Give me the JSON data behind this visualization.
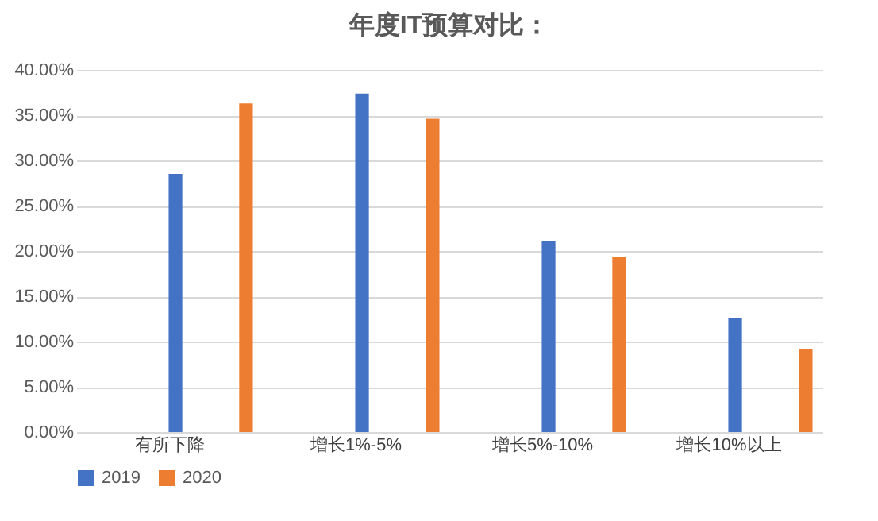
{
  "chart_data": {
    "type": "bar",
    "title": "年度IT预算对比：",
    "categories": [
      "有所下降",
      "增长1%-5%",
      "增长5%-10%",
      "增长10%以上"
    ],
    "series": [
      {
        "name": "2019",
        "color": "#4472c4",
        "values": [
          28.5,
          37.4,
          21.1,
          12.6
        ]
      },
      {
        "name": "2020",
        "color": "#ed7d31",
        "values": [
          36.3,
          34.6,
          19.3,
          9.2
        ]
      }
    ],
    "ylim": [
      0,
      40
    ],
    "yticks": [
      {
        "value": 0,
        "label": "0.00%"
      },
      {
        "value": 5,
        "label": "5.00%"
      },
      {
        "value": 10,
        "label": "10.00%"
      },
      {
        "value": 15,
        "label": "15.00%"
      },
      {
        "value": 20,
        "label": "20.00%"
      },
      {
        "value": 25,
        "label": "25.00%"
      },
      {
        "value": 30,
        "label": "30.00%"
      },
      {
        "value": 35,
        "label": "35.00%"
      },
      {
        "value": 40,
        "label": "40.00%"
      }
    ],
    "grid": "y",
    "legend": "bottom"
  }
}
